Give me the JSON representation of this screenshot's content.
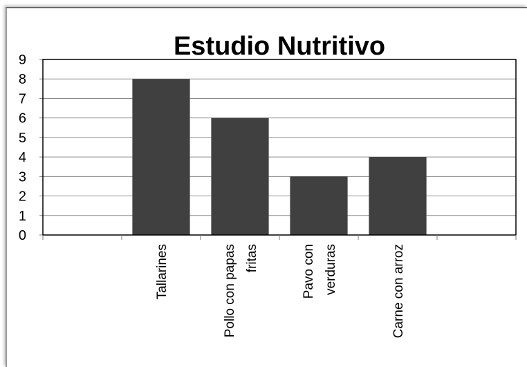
{
  "chart_data": {
    "type": "bar",
    "title": "Estudio Nutritivo",
    "categories": [
      "",
      "Tallarines",
      "Pollo con papas fritas",
      "Pavo con verduras",
      "Carne con arroz",
      ""
    ],
    "category_lines": [
      [],
      [
        "Tallarines"
      ],
      [
        "Pollo con papas",
        "fritas"
      ],
      [
        "Pavo con",
        "verduras"
      ],
      [
        "Carne con arroz"
      ],
      []
    ],
    "values": [
      null,
      8,
      6,
      3,
      4,
      null
    ],
    "ylim": [
      0,
      9
    ],
    "yticks": [
      "0",
      "1",
      "2",
      "3",
      "4",
      "5",
      "6",
      "7",
      "8",
      "9"
    ],
    "grid": true,
    "legend": "none",
    "bar_color": "#404040"
  }
}
